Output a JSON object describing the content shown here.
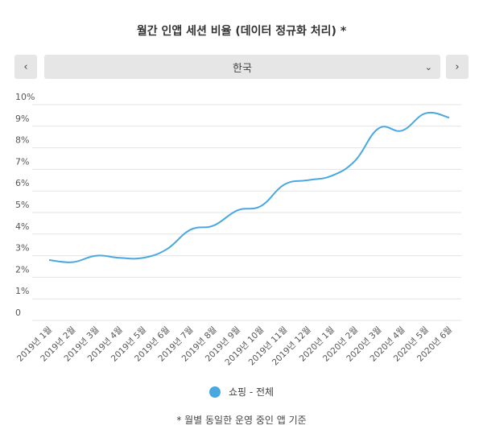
{
  "title": "월간 인앱 세션 비율 (데이터 정규화 처리) *",
  "nav": {
    "prev_icon": "chevron-left-icon",
    "next_icon": "chevron-right-icon",
    "selected": "한국",
    "dropdown_icon": "chevron-down-icon"
  },
  "legend_label": "쇼핑 - 전체",
  "footnote": "* 월별 동일한 운영 중인 앱 기준",
  "chart_data": {
    "type": "line",
    "categories": [
      "2019년 1월",
      "2019년 2월",
      "2019년 3월",
      "2019년 4월",
      "2019년 5월",
      "2019년 6월",
      "2019년 7월",
      "2019년 8월",
      "2019년 9월",
      "2019년 10월",
      "2019년 11월",
      "2019년 12월",
      "2020년 1월",
      "2020년 2월",
      "2020년 3월",
      "2020년 4월",
      "2020년 5월",
      "2020년 6월"
    ],
    "series": [
      {
        "name": "쇼핑 - 전체",
        "color": "#4aa8e0",
        "values": [
          2.8,
          2.7,
          3.0,
          2.9,
          2.9,
          3.3,
          4.2,
          4.4,
          5.1,
          5.3,
          6.3,
          6.5,
          6.7,
          7.4,
          8.9,
          8.8,
          9.6,
          9.4
        ]
      }
    ],
    "yticks": [
      "0",
      "1%",
      "2%",
      "3%",
      "4%",
      "5%",
      "6%",
      "7%",
      "8%",
      "9%",
      "10%"
    ],
    "ylim": [
      0,
      10
    ],
    "grid": true,
    "legend": "bottom"
  }
}
